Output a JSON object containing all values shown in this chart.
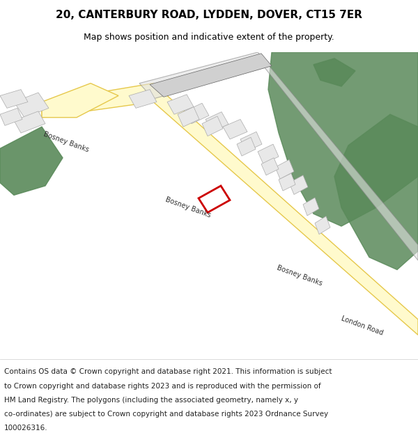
{
  "title": "20, CANTERBURY ROAD, LYDDEN, DOVER, CT15 7ER",
  "subtitle": "Map shows position and indicative extent of the property.",
  "footer_lines": [
    "Contains OS data © Crown copyright and database right 2021. This information is subject",
    "to Crown copyright and database rights 2023 and is reproduced with the permission of",
    "HM Land Registry. The polygons (including the associated geometry, namely x, y",
    "co-ordinates) are subject to Crown copyright and database rights 2023 Ordnance Survey",
    "100026316."
  ],
  "background_color": "#ffffff",
  "title_fontsize": 11,
  "subtitle_fontsize": 9,
  "footer_fontsize": 7.5,
  "title_color": "#000000",
  "road_yellow_fill": "#fffacd",
  "road_yellow_edge": "#e6c84b",
  "green_fill": "#5a8a5a",
  "building_fill": "#e8e8e8",
  "plot_edge": "#cc0000"
}
